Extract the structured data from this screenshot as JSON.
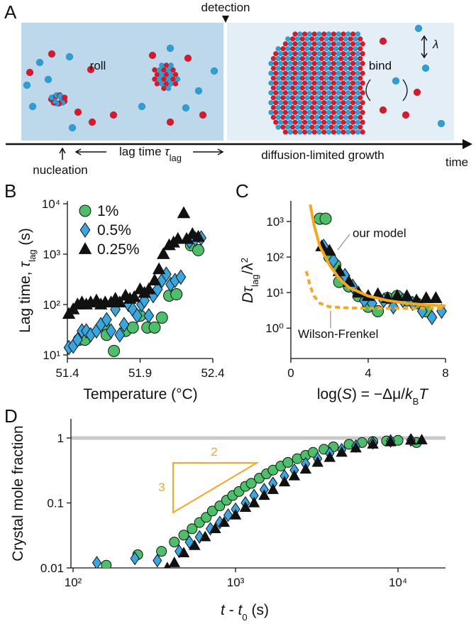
{
  "diagram": {
    "panel": "A",
    "detection": "detection",
    "roll": "roll",
    "bind": "bind",
    "lambda": "λ",
    "nucleation": "nucleation",
    "lag_time": [
      "lag time ",
      "τ",
      "lag"
    ],
    "growth": "diffusion-limited growth",
    "time": "time"
  },
  "chart_data": [
    {
      "type": "scatter",
      "panel": "B",
      "ylabel": [
        "Lag time, ",
        "τ",
        "lag",
        " (s)"
      ],
      "xlabel": "Temperature (°C)",
      "xlim": [
        51.4,
        52.4
      ],
      "xticks": [
        51.4,
        51.9,
        52.4
      ],
      "ylog": true,
      "ylim": [
        8.5,
        11400
      ],
      "yticks": [
        {
          "value": 10,
          "label": "10¹"
        },
        {
          "value": 100,
          "label": "10²"
        },
        {
          "value": 1000,
          "label": "10³"
        },
        {
          "value": 10000,
          "label": "10⁴"
        }
      ],
      "legend": "upper left",
      "series": [
        {
          "name": "1%",
          "color": "#4dbf6a",
          "marker": "circle",
          "x": [
            51.48,
            51.52,
            51.65,
            51.67,
            51.72,
            51.8,
            51.85,
            51.9,
            51.95,
            52.0,
            52.05,
            52.1,
            52.15,
            52.25,
            52.3
          ],
          "values": [
            20,
            20,
            40,
            25,
            12,
            30,
            35,
            60,
            35,
            35,
            55,
            150,
            160,
            1500,
            1200
          ]
        },
        {
          "name": "0.5%",
          "color": "#3aa6dd",
          "marker": "diamond",
          "x": [
            51.41,
            51.44,
            51.47,
            51.5,
            51.53,
            51.56,
            51.6,
            51.63,
            51.67,
            51.7,
            51.73,
            51.76,
            51.79,
            51.82,
            51.85,
            51.88,
            51.91,
            51.93,
            51.96,
            51.99,
            52.02,
            52.05,
            52.08,
            52.11,
            52.14,
            52.18,
            52.24,
            52.28,
            52.32
          ],
          "values": [
            14,
            15,
            20,
            30,
            30,
            25,
            30,
            40,
            50,
            30,
            80,
            25,
            40,
            100,
            80,
            60,
            100,
            120,
            60,
            150,
            200,
            300,
            400,
            250,
            300,
            350,
            1800,
            2000,
            2100
          ]
        },
        {
          "name": "0.25%",
          "color": "#111111",
          "marker": "triangle",
          "x": [
            51.41,
            51.44,
            51.47,
            51.5,
            51.53,
            51.56,
            51.6,
            51.63,
            51.66,
            51.7,
            51.73,
            51.76,
            51.8,
            51.83,
            51.86,
            51.9,
            51.93,
            51.96,
            52.0,
            52.03,
            52.06,
            52.1,
            52.13,
            52.16,
            52.2,
            52.22,
            52.26,
            52.3
          ],
          "values": [
            65,
            80,
            100,
            110,
            100,
            110,
            120,
            100,
            110,
            110,
            130,
            110,
            150,
            130,
            140,
            200,
            170,
            200,
            300,
            500,
            1000,
            1500,
            1700,
            2000,
            6500,
            2000,
            2500,
            2200
          ]
        }
      ]
    },
    {
      "type": "scatter",
      "panel": "C",
      "ylabel": [
        "Dτ",
        "lag",
        "/λ",
        "2"
      ],
      "xlabel": [
        "log(",
        "S",
        ") = −Δμ/",
        "k",
        "B",
        "T"
      ],
      "xlim": [
        0,
        8
      ],
      "xticks": [
        0,
        4,
        8
      ],
      "ylog": true,
      "ylim": [
        0.14,
        3800
      ],
      "yticks": [
        {
          "value": 1,
          "label": "10⁰"
        },
        {
          "value": 10,
          "label": "10¹"
        },
        {
          "value": 100,
          "label": "10²"
        },
        {
          "value": 1000,
          "label": "10³"
        }
      ],
      "annotations": [
        "our model",
        "Wilson-Frenkel"
      ],
      "series": [
        {
          "color": "#4dbf6a",
          "marker": "circle",
          "x": [
            1.5,
            1.8,
            2.0,
            2.3,
            2.5,
            3,
            3.5,
            4,
            4.5,
            5,
            5.5,
            6,
            6.5,
            7
          ],
          "values": [
            1200,
            1200,
            100,
            60,
            20,
            15,
            8,
            4,
            3,
            7,
            8,
            6,
            5,
            3
          ]
        },
        {
          "color": "#3aa6dd",
          "marker": "diamond",
          "x": [
            1.7,
            2.2,
            2.8,
            3.2,
            3.8,
            4.2,
            4.8,
            5.3,
            5.8,
            6.3,
            6.8,
            7.3,
            7.8
          ],
          "values": [
            200,
            80,
            30,
            15,
            6,
            5,
            6,
            4,
            6,
            5,
            3,
            2,
            3
          ]
        },
        {
          "color": "#111111",
          "marker": "triangle",
          "x": [
            1.6,
            2,
            2.5,
            3,
            3.5,
            4,
            4.5,
            5,
            5.5,
            6,
            6.5,
            7,
            7.5
          ],
          "values": [
            200,
            150,
            40,
            20,
            10,
            8,
            9,
            7,
            8,
            8,
            6,
            7,
            7
          ]
        },
        {
          "color": "#f5a623",
          "line_style": "solid",
          "x": [
            1.0,
            1.2,
            1.5,
            2,
            2.5,
            3,
            4,
            5,
            6,
            7,
            8
          ],
          "values": [
            3000,
            800,
            200,
            60,
            25,
            14,
            8,
            6,
            5,
            4.5,
            4.2
          ]
        },
        {
          "color": "#f5a623",
          "line_style": "dashed",
          "x": [
            0.8,
            1,
            1.2,
            1.5,
            2,
            3,
            4,
            5,
            6,
            8
          ],
          "values": [
            40,
            15,
            8,
            5,
            4,
            3.7,
            3.6,
            3.6,
            3.6,
            3.6
          ]
        }
      ]
    },
    {
      "type": "scatter",
      "panel": "D",
      "ylabel": "Crystal mole fraction",
      "xlabel": [
        "t",
        " - ",
        "t",
        "0",
        " (s)"
      ],
      "xlog": true,
      "xlim": [
        97,
        19600
      ],
      "xticks": [
        {
          "value": 100,
          "label": "10²"
        },
        {
          "value": 1000,
          "label": "10³"
        },
        {
          "value": 10000,
          "label": "10⁴"
        }
      ],
      "ylog": true,
      "ylim": [
        0.01,
        1.97
      ],
      "yticks": [
        0.01,
        0.1,
        1
      ],
      "hline": 1,
      "hline_color": "#c8c8c8",
      "annotations": [
        "2",
        "3"
      ],
      "annotation_color": "#f5a623",
      "series": [
        {
          "color": "#4dbf6a",
          "marker": "circle",
          "x": [
            160,
            250,
            350,
            420,
            480,
            540,
            600,
            660,
            720,
            800,
            880,
            960,
            1050,
            1150,
            1250,
            1400,
            1550,
            1700,
            1900,
            2100,
            2400,
            2700,
            3000,
            3500,
            4000,
            5000,
            6000,
            7000,
            8500,
            10000,
            13000
          ],
          "values": [
            0.011,
            0.016,
            0.018,
            0.025,
            0.032,
            0.04,
            0.05,
            0.06,
            0.075,
            0.09,
            0.11,
            0.13,
            0.15,
            0.18,
            0.2,
            0.24,
            0.28,
            0.32,
            0.37,
            0.42,
            0.48,
            0.54,
            0.6,
            0.67,
            0.73,
            0.8,
            0.85,
            0.88,
            0.9,
            0.92,
            0.85
          ]
        },
        {
          "color": "#3aa6dd",
          "marker": "diamond",
          "x": [
            140,
            240,
            330,
            450,
            520,
            600,
            700,
            800,
            900,
            1000,
            1150,
            1300,
            1500,
            1700,
            2000,
            2300,
            2700,
            3200,
            3800,
            4500,
            5500,
            7000,
            9000,
            12000
          ],
          "values": [
            0.012,
            0.014,
            0.013,
            0.018,
            0.025,
            0.03,
            0.04,
            0.05,
            0.065,
            0.08,
            0.1,
            0.13,
            0.16,
            0.2,
            0.26,
            0.32,
            0.4,
            0.48,
            0.58,
            0.66,
            0.75,
            0.84,
            0.9,
            0.93
          ]
        },
        {
          "color": "#111111",
          "marker": "triangle",
          "x": [
            380,
            420,
            480,
            560,
            650,
            750,
            850,
            1000,
            1150,
            1300,
            1500,
            1700,
            2000,
            2300,
            2700,
            3200,
            3800,
            4500,
            5500,
            7000,
            9000,
            12000,
            14000
          ],
          "values": [
            0.01,
            0.012,
            0.017,
            0.022,
            0.03,
            0.04,
            0.05,
            0.065,
            0.085,
            0.1,
            0.13,
            0.16,
            0.21,
            0.26,
            0.33,
            0.42,
            0.5,
            0.6,
            0.7,
            0.8,
            0.87,
            0.92,
            0.93
          ]
        }
      ]
    }
  ]
}
